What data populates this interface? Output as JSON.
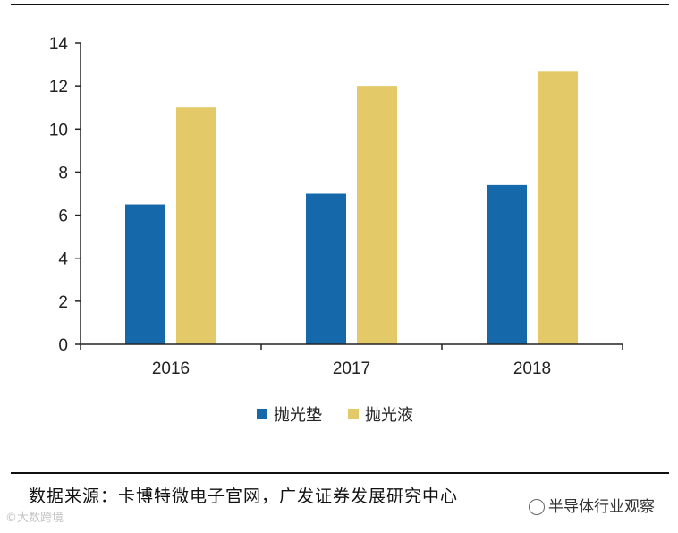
{
  "chart_data": {
    "type": "bar",
    "categories": [
      "2016",
      "2017",
      "2018"
    ],
    "series": [
      {
        "name": "抛光垫",
        "values": [
          6.5,
          7.0,
          7.4
        ],
        "color": "#1569aa"
      },
      {
        "name": "抛光液",
        "values": [
          11.0,
          12.0,
          12.7
        ],
        "color": "#e3c968"
      }
    ],
    "ylim": [
      0,
      14
    ],
    "yticks": [
      "0",
      "2",
      "4",
      "6",
      "8",
      "10",
      "12",
      "14"
    ],
    "legend": "bottom-center",
    "grid": false
  },
  "source_text": "数据来源：卡博特微电子官网，广发证券发展研究中心",
  "watermark_text": "半导体行业观察",
  "corner_mark_text": "©大数跨境"
}
